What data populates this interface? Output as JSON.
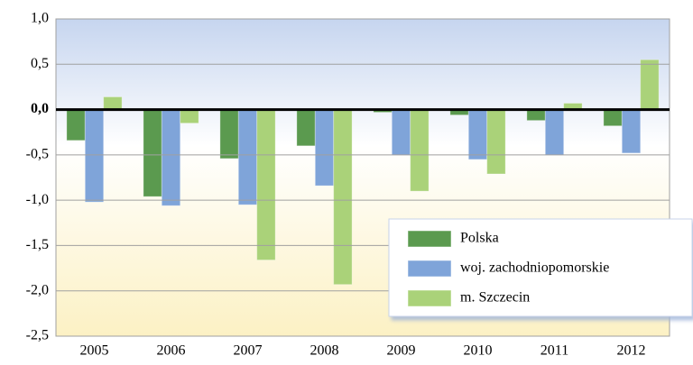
{
  "chart_data": {
    "type": "bar",
    "categories": [
      "2005",
      "2006",
      "2007",
      "2008",
      "2009",
      "2010",
      "2011",
      "2012"
    ],
    "series": [
      {
        "name": "Polska",
        "color": "#5b9a4f",
        "values": [
          -0.34,
          -0.96,
          -0.54,
          -0.4,
          -0.03,
          -0.06,
          -0.12,
          -0.18
        ]
      },
      {
        "name": "woj. zachodniopomorskie",
        "color": "#7fa4d9",
        "values": [
          -1.02,
          -1.06,
          -1.05,
          -0.84,
          -0.5,
          -0.55,
          -0.5,
          -0.48
        ]
      },
      {
        "name": "m. Szczecin",
        "color": "#aad279",
        "values": [
          0.14,
          -0.15,
          -1.66,
          -1.93,
          -0.9,
          -0.71,
          0.07,
          0.55
        ]
      }
    ],
    "ylim": [
      -2.5,
      1.0
    ],
    "yticks": [
      {
        "value": -2.5,
        "label": "-2,5"
      },
      {
        "value": -2.0,
        "label": "-2,0"
      },
      {
        "value": -1.5,
        "label": "-1,5"
      },
      {
        "value": -1.0,
        "label": "-1,0"
      },
      {
        "value": -0.5,
        "label": "-0,5"
      },
      {
        "value": 0.0,
        "label": "0,0"
      },
      {
        "value": 0.5,
        "label": "0,5"
      },
      {
        "value": 1.0,
        "label": "1,0"
      }
    ],
    "grid": true,
    "legend": "lower right"
  }
}
